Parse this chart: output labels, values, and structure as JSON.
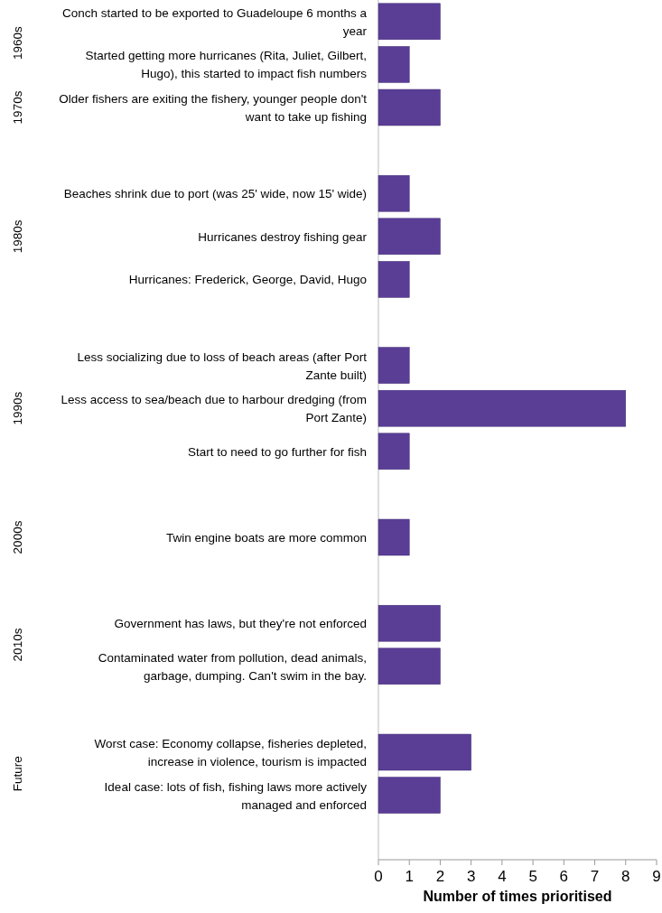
{
  "chart_data": {
    "type": "bar",
    "orientation": "horizontal",
    "xlabel": "Number of times prioritised",
    "categories": [
      "Conch started to be exported to Guadeloupe 6 months a year",
      "Started getting more hurricanes (Rita, Juliet, Gilbert, Hugo), this started to impact fish numbers",
      "Older fishers are exiting the fishery, younger people don't want to take up fishing",
      null,
      "Beaches shrink due to port (was 25' wide, now 15' wide)",
      "Hurricanes destroy fishing gear",
      "Hurricanes: Frederick, George, David, Hugo",
      null,
      "Less socializing due to loss of beach areas (after Port Zante built)",
      "Less access to sea/beach due to harbour dredging (from Port Zante)",
      "Start to need to go further for fish",
      null,
      "Twin engine boats are more common",
      null,
      "Government has laws, but they're not enforced",
      "Contaminated water from pollution, dead animals, garbage, dumping.  Can't swim in the bay.",
      null,
      "Worst case: Economy collapse, fisheries depleted, increase in violence, tourism is impacted",
      "Ideal case: lots of fish, fishing laws more actively managed and enforced",
      null
    ],
    "values": [
      2,
      1,
      2,
      null,
      1,
      2,
      1,
      null,
      1,
      8,
      1,
      null,
      1,
      null,
      2,
      2,
      null,
      3,
      2,
      null
    ],
    "color": "#5a3e96",
    "xlim": [
      0,
      9
    ],
    "xticks": [
      0,
      1,
      2,
      3,
      4,
      5,
      6,
      7,
      8,
      9
    ],
    "grid": false,
    "annotations": [
      "1960s",
      "1970s",
      "1980s",
      "1990s",
      "2000s",
      "2010s",
      "Future"
    ]
  }
}
